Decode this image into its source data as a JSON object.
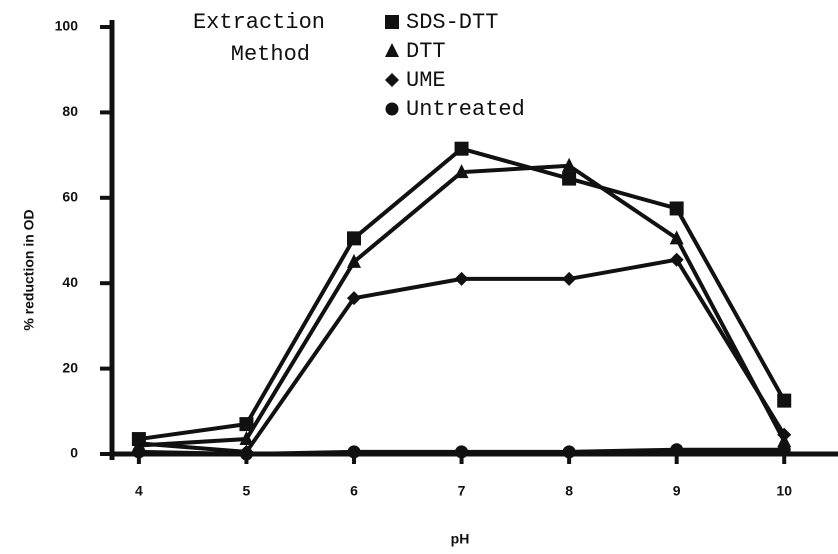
{
  "chart_data": {
    "type": "line",
    "x_label": "pH",
    "y_label": "% reduction in OD",
    "legend_title": [
      "Extraction",
      "Method"
    ],
    "x": [
      4,
      5,
      6,
      7,
      8,
      9,
      10
    ],
    "series": [
      {
        "name": "SDS-DTT",
        "color": "#111111",
        "marker": "square",
        "values": [
          3.5,
          7,
          50.5,
          71.5,
          64.5,
          57.5,
          12.5
        ]
      },
      {
        "name": "DTT",
        "color": "#111111",
        "marker": "triangle",
        "values": [
          2,
          3.5,
          45,
          66,
          67.5,
          50.5,
          3
        ]
      },
      {
        "name": "UME",
        "color": "#111111",
        "marker": "diamond",
        "values": [
          2.5,
          0.5,
          36.5,
          41,
          41,
          45.5,
          4.5
        ]
      },
      {
        "name": "Untreated",
        "color": "#111111",
        "marker": "circle",
        "values": [
          0.5,
          0,
          0.5,
          0.5,
          0.5,
          1,
          1
        ]
      }
    ],
    "xlim": [
      3.75,
      10.5
    ],
    "ylim": [
      0,
      100
    ],
    "xticks": [
      4,
      5,
      6,
      7,
      8,
      9,
      10
    ],
    "yticks": [
      0,
      20,
      40,
      60,
      80,
      100
    ]
  }
}
